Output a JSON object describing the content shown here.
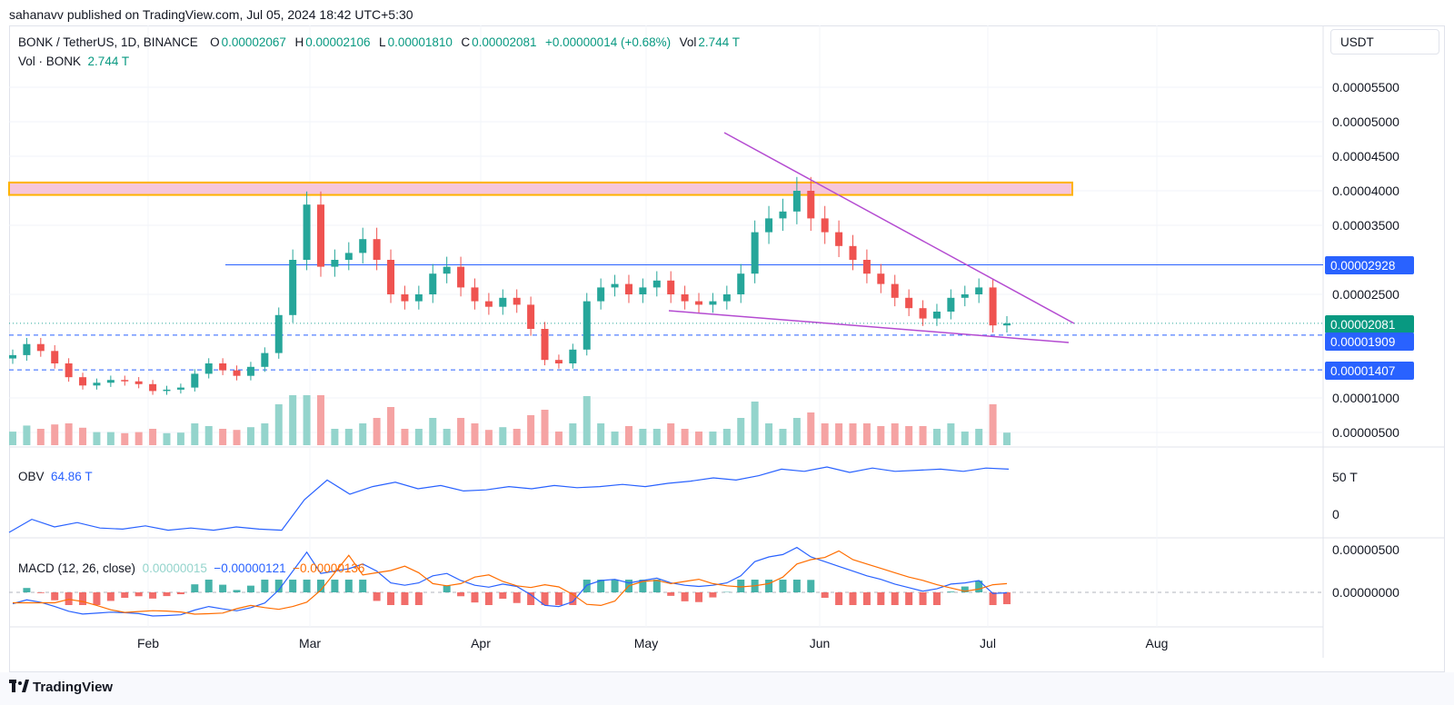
{
  "header": {
    "published": "sahanavv published on TradingView.com, Jul 05, 2024 18:42 UTC+5:30"
  },
  "legend": {
    "symbol": "BONK / TetherUS, 1D, BINANCE",
    "o_label": "O",
    "o_value": "0.00002067",
    "h_label": "H",
    "h_value": "0.00002106",
    "l_label": "L",
    "l_value": "0.00001810",
    "c_label": "C",
    "c_value": "0.00002081",
    "change": "+0.00000014 (+0.68%)",
    "vol_label": "Vol",
    "vol_value": "2.744 T",
    "vol2_label": "Vol · BONK",
    "vol2_value": "2.744 T"
  },
  "obv": {
    "label": "OBV",
    "value": "64.86 T"
  },
  "macd": {
    "label": "MACD (12, 26, close)",
    "hist": "0.00000015",
    "macd": "−0.00000121",
    "signal": "−0.00000136"
  },
  "currency": "USDT",
  "price_tags": {
    "current": "0.00002081",
    "resistance": "0.00002928",
    "support1": "0.00001909",
    "support2": "0.00001407"
  },
  "colors": {
    "up": "#26a69a",
    "down": "#ef5350",
    "vol_up": "#94d4cc",
    "vol_down": "#f5a3a3",
    "blue": "#2962ff",
    "orange": "#ff6d00",
    "purple": "#b44bd1",
    "zone_fill": "#f7c6da",
    "zone_stroke": "#ffb300"
  },
  "brand": "TradingView",
  "chart_data": [
    {
      "type": "candlestick",
      "title": "BONK / TetherUS, 1D, BINANCE",
      "ylim": [
        2.7e-06,
        6.3e-06
      ],
      "y_ticks": [
        "0.00005500",
        "0.00005000",
        "0.00004500",
        "0.00004000",
        "0.00003500",
        "0.00002500",
        "0.00001000",
        "0.00000500"
      ],
      "x_ticks": [
        "Feb",
        "Mar",
        "Apr",
        "May",
        "Jun",
        "Jul",
        "Aug"
      ],
      "resistance_zone": [
        3.94e-05,
        4.12e-05
      ],
      "horizontal_levels": [
        2.928e-05,
        1.909e-05,
        1.407e-05
      ],
      "close_series": [
        1.62e-05,
        1.78e-05,
        1.68e-05,
        1.5e-05,
        1.3e-05,
        1.18e-05,
        1.22e-05,
        1.26e-05,
        1.24e-05,
        1.2e-05,
        1.1e-05,
        1.12e-05,
        1.15e-05,
        1.35e-05,
        1.5e-05,
        1.4e-05,
        1.32e-05,
        1.45e-05,
        1.65e-05,
        2.2e-05,
        3e-05,
        3.8e-05,
        2.9e-05,
        3e-05,
        3.1e-05,
        3.3e-05,
        3e-05,
        2.5e-05,
        2.4e-05,
        2.5e-05,
        2.8e-05,
        2.9e-05,
        2.6e-05,
        2.4e-05,
        2.32e-05,
        2.45e-05,
        2.35e-05,
        2e-05,
        1.55e-05,
        1.5e-05,
        1.7e-05,
        2.4e-05,
        2.6e-05,
        2.65e-05,
        2.5e-05,
        2.6e-05,
        2.7e-05,
        2.5e-05,
        2.4e-05,
        2.35e-05,
        2.4e-05,
        2.5e-05,
        2.8e-05,
        3.4e-05,
        3.6e-05,
        3.7e-05,
        4e-05,
        3.6e-05,
        3.4e-05,
        3.2e-05,
        3e-05,
        2.8e-05,
        2.65e-05,
        2.45e-05,
        2.3e-05,
        2.15e-05,
        2.25e-05,
        2.45e-05,
        2.5e-05,
        2.6e-05,
        2.05e-05,
        2.08e-05
      ]
    },
    {
      "type": "line",
      "title": "OBV",
      "y_ticks": [
        "50 T",
        "0"
      ],
      "values": [
        0.0,
        12,
        5,
        9,
        4,
        3,
        6,
        2,
        4,
        2,
        5,
        3,
        2,
        30,
        48,
        35,
        42,
        46,
        40,
        43,
        38,
        39,
        42,
        40,
        43,
        41,
        42,
        44,
        42,
        45,
        47,
        50,
        48,
        52,
        58,
        56,
        60,
        55,
        59,
        56,
        57,
        58,
        56,
        59,
        58
      ]
    },
    {
      "type": "bar",
      "title": "MACD (12, 26, close)",
      "y_ticks": [
        "0.00000500",
        "0.00000000"
      ],
      "x_ticks": [
        "Feb",
        "Mar",
        "Apr",
        "May",
        "Jun",
        "Jul",
        "Aug"
      ]
    }
  ]
}
